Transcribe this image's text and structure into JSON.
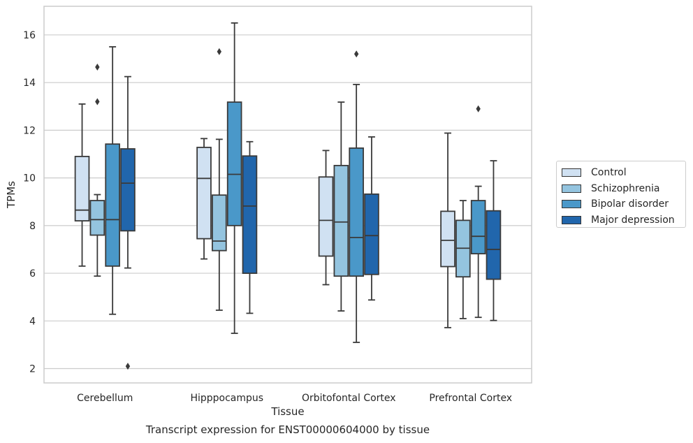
{
  "caption": "Transcript expression for ENST00000604000 by tissue",
  "chart_data": {
    "type": "boxplot",
    "xlabel": "Tissue",
    "ylabel": "TPMs",
    "ylim": [
      1.4,
      17.2
    ],
    "yticks": [
      2,
      4,
      6,
      8,
      10,
      12,
      14,
      16
    ],
    "grid": "horizontal",
    "legend_position": "right",
    "categories": [
      "Cerebellum",
      "Hipppocampus",
      "Orbitofontal Cortex",
      "Prefrontal Cortex"
    ],
    "series": [
      {
        "name": "Control",
        "color": "#d0e1f2",
        "boxes": [
          {
            "whislo": 6.3,
            "q1": 8.2,
            "med": 8.65,
            "q3": 10.9,
            "whishi": 13.1,
            "fliers": []
          },
          {
            "whislo": 6.6,
            "q1": 7.45,
            "med": 9.98,
            "q3": 11.28,
            "whishi": 11.65,
            "fliers": []
          },
          {
            "whislo": 5.52,
            "q1": 6.72,
            "med": 8.22,
            "q3": 10.04,
            "whishi": 11.15,
            "fliers": []
          },
          {
            "whislo": 3.72,
            "q1": 6.28,
            "med": 7.38,
            "q3": 8.6,
            "whishi": 11.88,
            "fliers": []
          }
        ]
      },
      {
        "name": "Schizophrenia",
        "color": "#94c4df",
        "boxes": [
          {
            "whislo": 5.88,
            "q1": 7.6,
            "med": 8.25,
            "q3": 9.05,
            "whishi": 9.3,
            "fliers": [
              13.2,
              14.65
            ]
          },
          {
            "whislo": 4.45,
            "q1": 6.95,
            "med": 7.35,
            "q3": 9.28,
            "whishi": 11.62,
            "fliers": [
              15.3
            ]
          },
          {
            "whislo": 4.42,
            "q1": 5.88,
            "med": 8.15,
            "q3": 10.52,
            "whishi": 13.18,
            "fliers": []
          },
          {
            "whislo": 4.1,
            "q1": 5.85,
            "med": 7.05,
            "q3": 8.22,
            "whishi": 9.05,
            "fliers": []
          }
        ]
      },
      {
        "name": "Bipolar disorder",
        "color": "#4a98c9",
        "boxes": [
          {
            "whislo": 4.28,
            "q1": 6.3,
            "med": 8.25,
            "q3": 11.42,
            "whishi": 15.5,
            "fliers": []
          },
          {
            "whislo": 3.48,
            "q1": 8.0,
            "med": 10.15,
            "q3": 13.18,
            "whishi": 16.5,
            "fliers": []
          },
          {
            "whislo": 3.1,
            "q1": 5.88,
            "med": 7.5,
            "q3": 11.25,
            "whishi": 13.92,
            "fliers": [
              15.2
            ]
          },
          {
            "whislo": 4.15,
            "q1": 6.82,
            "med": 7.55,
            "q3": 9.05,
            "whishi": 9.65,
            "fliers": [
              12.9
            ]
          }
        ]
      },
      {
        "name": "Major depression",
        "color": "#2166ac",
        "boxes": [
          {
            "whislo": 6.22,
            "q1": 7.78,
            "med": 9.78,
            "q3": 11.22,
            "whishi": 14.25,
            "fliers": [
              2.1
            ]
          },
          {
            "whislo": 4.32,
            "q1": 6.0,
            "med": 8.82,
            "q3": 10.92,
            "whishi": 11.52,
            "fliers": []
          },
          {
            "whislo": 4.88,
            "q1": 5.95,
            "med": 7.58,
            "q3": 9.32,
            "whishi": 11.72,
            "fliers": []
          },
          {
            "whislo": 4.02,
            "q1": 5.75,
            "med": 7.0,
            "q3": 8.62,
            "whishi": 10.72,
            "fliers": []
          }
        ]
      }
    ]
  }
}
